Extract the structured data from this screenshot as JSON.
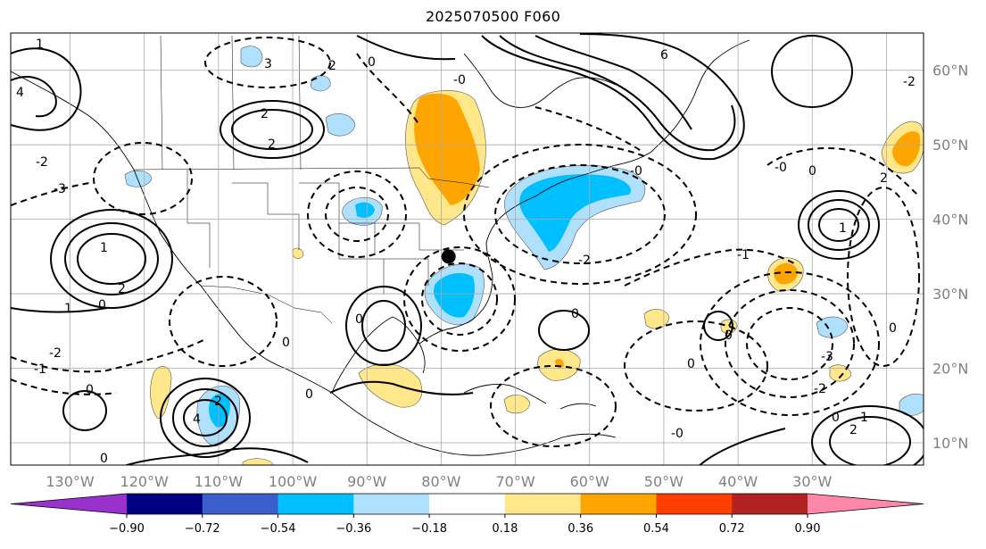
{
  "title": "2025070500 F060",
  "map": {
    "lon_range": [
      -138,
      -15
    ],
    "lat_range": [
      7,
      65
    ],
    "grid_lons": [
      -130,
      -120,
      -110,
      -100,
      -90,
      -80,
      -70,
      -60,
      -50,
      -40,
      -30,
      -20
    ],
    "grid_lats": [
      10,
      20,
      30,
      40,
      50,
      60
    ],
    "lon_labels": [
      "130°W",
      "120°W",
      "110°W",
      "100°W",
      "90°W",
      "80°W",
      "70°W",
      "60°W",
      "50°W",
      "40°W",
      "30°W"
    ],
    "lat_labels": [
      "10°N",
      "20°N",
      "30°N",
      "40°N",
      "50°N",
      "60°N"
    ],
    "marker": {
      "lon": -79,
      "lat": 35
    }
  },
  "colorbar": {
    "levels": [
      "−0.90",
      "−0.72",
      "−0.54",
      "−0.36",
      "−0.18",
      "0.18",
      "0.36",
      "0.54",
      "0.72",
      "0.90"
    ],
    "colors": [
      "#9932cc",
      "#000080",
      "#3a5fcd",
      "#00bfff",
      "#afe0fd",
      "#ffffff",
      "#ffe78a",
      "#ffa500",
      "#ff3e00",
      "#b22222",
      "#ff88aa"
    ]
  },
  "contour_labels": [
    "1",
    "2",
    "3",
    "4",
    "-1",
    "-2",
    "-3",
    "0",
    "-0",
    "6"
  ]
}
